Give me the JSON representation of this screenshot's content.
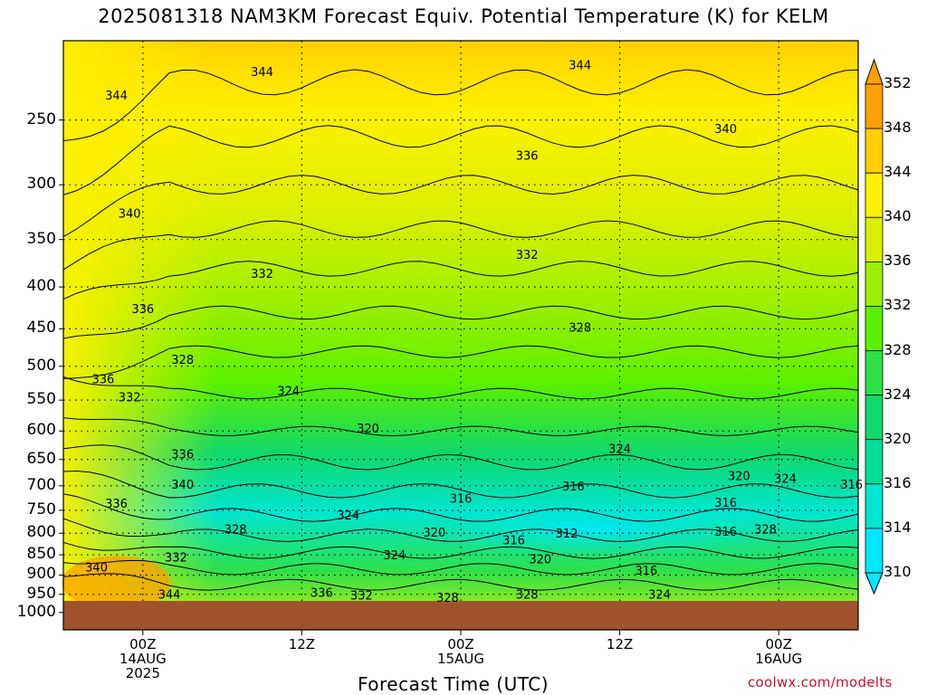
{
  "title": "2025081318 NAM3KM Forecast Equiv. Potential Temperature (K) for KELM",
  "xlabel": "Forecast Time (UTC)",
  "credit": "coolwx.com/modelts",
  "colors": {
    "ground": "#a0522d",
    "palette": [
      "#00e8ff",
      "#00e6d2",
      "#00de9a",
      "#10d86a",
      "#2ee04a",
      "#5cf000",
      "#9af000",
      "#d8f000",
      "#fff000",
      "#ffd000",
      "#ffa000"
    ]
  },
  "chart_data": {
    "type": "heatmap",
    "title": "2025081318 NAM3KM Forecast Equiv. Potential Temperature (K) for KELM",
    "xlabel": "Forecast Time (UTC)",
    "ylabel": "",
    "y_axis": {
      "scale": "pressure (inverted, log)",
      "ticks": [
        "250",
        "300",
        "350",
        "400",
        "450",
        "500",
        "550",
        "600",
        "650",
        "700",
        "750",
        "800",
        "850",
        "900",
        "950",
        "1000"
      ],
      "range": [
        1000,
        200
      ]
    },
    "x_axis": {
      "range_hours": [
        0,
        60
      ],
      "ticks": [
        {
          "hour": 6,
          "line1": "00Z",
          "line2": "14AUG",
          "line3": "2025"
        },
        {
          "hour": 18,
          "line1": "12Z",
          "line2": "",
          "line3": ""
        },
        {
          "hour": 30,
          "line1": "00Z",
          "line2": "15AUG",
          "line3": ""
        },
        {
          "hour": 42,
          "line1": "12Z",
          "line2": "",
          "line3": ""
        },
        {
          "hour": 54,
          "line1": "00Z",
          "line2": "16AUG",
          "line3": ""
        }
      ]
    },
    "colorbar": {
      "levels": [
        "352",
        "348",
        "344",
        "340",
        "336",
        "332",
        "328",
        "324",
        "320",
        "316",
        "314",
        "310"
      ],
      "units": "K"
    },
    "grid": true,
    "contour_labels": [
      {
        "text": "344",
        "hour": 15,
        "p": 218
      },
      {
        "text": "344",
        "hour": 39,
        "p": 214
      },
      {
        "text": "344",
        "hour": 4,
        "p": 233
      },
      {
        "text": "340",
        "hour": 50,
        "p": 256
      },
      {
        "text": "336",
        "hour": 35,
        "p": 276
      },
      {
        "text": "340",
        "hour": 5,
        "p": 325
      },
      {
        "text": "332",
        "hour": 35,
        "p": 365
      },
      {
        "text": "332",
        "hour": 15,
        "p": 385
      },
      {
        "text": "336",
        "hour": 6,
        "p": 425
      },
      {
        "text": "328",
        "hour": 39,
        "p": 448
      },
      {
        "text": "328",
        "hour": 9,
        "p": 490
      },
      {
        "text": "336",
        "hour": 3,
        "p": 518
      },
      {
        "text": "332",
        "hour": 5,
        "p": 545
      },
      {
        "text": "324",
        "hour": 17,
        "p": 535
      },
      {
        "text": "320",
        "hour": 23,
        "p": 595
      },
      {
        "text": "324",
        "hour": 42,
        "p": 630
      },
      {
        "text": "336",
        "hour": 9,
        "p": 640
      },
      {
        "text": "320",
        "hour": 51,
        "p": 680
      },
      {
        "text": "324",
        "hour": 54.5,
        "p": 685
      },
      {
        "text": "316",
        "hour": 59.5,
        "p": 697
      },
      {
        "text": "340",
        "hour": 9,
        "p": 697
      },
      {
        "text": "316",
        "hour": 38.5,
        "p": 700
      },
      {
        "text": "316",
        "hour": 30,
        "p": 725
      },
      {
        "text": "336",
        "hour": 4,
        "p": 735
      },
      {
        "text": "316",
        "hour": 50,
        "p": 733
      },
      {
        "text": "324",
        "hour": 21.5,
        "p": 760
      },
      {
        "text": "328",
        "hour": 13,
        "p": 790
      },
      {
        "text": "320",
        "hour": 28,
        "p": 797
      },
      {
        "text": "312",
        "hour": 38,
        "p": 800
      },
      {
        "text": "316",
        "hour": 50,
        "p": 795
      },
      {
        "text": "328",
        "hour": 53,
        "p": 790
      },
      {
        "text": "316",
        "hour": 34,
        "p": 815
      },
      {
        "text": "324",
        "hour": 25,
        "p": 850
      },
      {
        "text": "332",
        "hour": 8.5,
        "p": 855
      },
      {
        "text": "320",
        "hour": 36,
        "p": 860
      },
      {
        "text": "340",
        "hour": 2.5,
        "p": 880
      },
      {
        "text": "316",
        "hour": 44,
        "p": 888
      },
      {
        "text": "336",
        "hour": 19.5,
        "p": 945
      },
      {
        "text": "332",
        "hour": 22.5,
        "p": 952
      },
      {
        "text": "344",
        "hour": 8,
        "p": 950
      },
      {
        "text": "328",
        "hour": 29,
        "p": 958
      },
      {
        "text": "328",
        "hour": 35,
        "p": 950
      },
      {
        "text": "324",
        "hour": 45,
        "p": 950
      }
    ]
  }
}
